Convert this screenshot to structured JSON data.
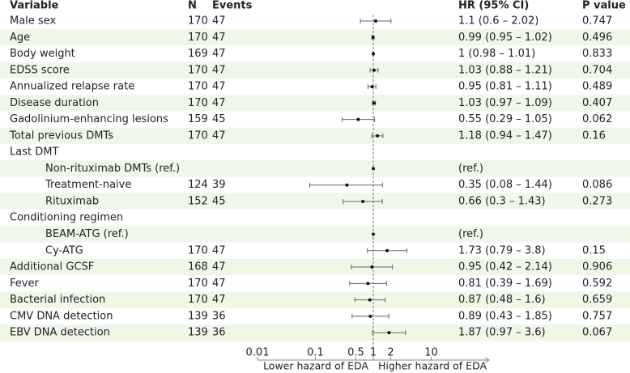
{
  "chart_data": {
    "type": "forest",
    "headers": {
      "variable": "Variable",
      "n": "N",
      "events": "Events",
      "hr": "HR (95% CI)",
      "p": "P value"
    },
    "x_scale": "log",
    "xlim": [
      0.01,
      100
    ],
    "xticks": [
      0.01,
      0.1,
      0.5,
      1,
      2,
      10
    ],
    "reference": 1,
    "x_label_left": "Lower hazard of EDA",
    "x_label_right": "Higher hazard of EDA",
    "point_color": "#111111",
    "ci_color": "#666666",
    "stripe_color": "#f0f7e9",
    "rows": [
      {
        "variable": "Male sex",
        "n": 170,
        "events": 47,
        "hr": 1.1,
        "lower": 0.6,
        "upper": 2.02,
        "hr_label": "1.1 (0.6 – 2.02)",
        "p": 0.747
      },
      {
        "variable": "Age",
        "n": 170,
        "events": 47,
        "hr": 0.99,
        "lower": 0.95,
        "upper": 1.02,
        "hr_label": "0.99 (0.95 – 1.02)",
        "p": 0.496
      },
      {
        "variable": "Body weight",
        "n": 169,
        "events": 47,
        "hr": 1,
        "lower": 0.98,
        "upper": 1.01,
        "hr_label": "1 (0.98 – 1.01)",
        "p": 0.833
      },
      {
        "variable": "EDSS score",
        "n": 170,
        "events": 47,
        "hr": 1.03,
        "lower": 0.88,
        "upper": 1.21,
        "hr_label": "1.03 (0.88 – 1.21)",
        "p": 0.704
      },
      {
        "variable": "Annualized relapse rate",
        "n": 170,
        "events": 47,
        "hr": 0.95,
        "lower": 0.81,
        "upper": 1.11,
        "hr_label": "0.95 (0.81 – 1.11)",
        "p": 0.489
      },
      {
        "variable": "Disease duration",
        "n": 170,
        "events": 47,
        "hr": 1.03,
        "lower": 0.97,
        "upper": 1.09,
        "hr_label": "1.03 (0.97 – 1.09)",
        "p": 0.407
      },
      {
        "variable": "Gadolinium-enhancing lesions",
        "n": 159,
        "events": 45,
        "hr": 0.55,
        "lower": 0.29,
        "upper": 1.05,
        "hr_label": "0.55 (0.29 – 1.05)",
        "p": 0.062
      },
      {
        "variable": "Total previous DMTs",
        "n": 170,
        "events": 47,
        "hr": 1.18,
        "lower": 0.94,
        "upper": 1.47,
        "hr_label": "1.18 (0.94 – 1.47)",
        "p": 0.16
      },
      {
        "variable": "Last DMT"
      },
      {
        "variable": "Non-rituximab DMTs (ref.)",
        "indent": true,
        "hr": 1,
        "hr_label": "(ref.)"
      },
      {
        "variable": "Treatment-naive",
        "indent": true,
        "n": 124,
        "events": 39,
        "hr": 0.35,
        "lower": 0.08,
        "upper": 1.44,
        "hr_label": "0.35 (0.08 – 1.44)",
        "p": 0.086
      },
      {
        "variable": "Rituximab",
        "indent": true,
        "n": 152,
        "events": 45,
        "hr": 0.66,
        "lower": 0.3,
        "upper": 1.43,
        "hr_label": "0.66 (0.3 – 1.43)",
        "p": 0.273
      },
      {
        "variable": "Conditioning regimen"
      },
      {
        "variable": "BEAM-ATG (ref.)",
        "indent": true,
        "hr": 1,
        "hr_label": "(ref.)"
      },
      {
        "variable": "Cy-ATG",
        "indent": true,
        "n": 170,
        "events": 47,
        "hr": 1.73,
        "lower": 0.79,
        "upper": 3.8,
        "hr_label": "1.73 (0.79 – 3.8)",
        "p": 0.15
      },
      {
        "variable": "Additional GCSF",
        "n": 168,
        "events": 47,
        "hr": 0.95,
        "lower": 0.42,
        "upper": 2.14,
        "hr_label": "0.95 (0.42 – 2.14)",
        "p": 0.906
      },
      {
        "variable": "Fever",
        "n": 170,
        "events": 47,
        "hr": 0.81,
        "lower": 0.39,
        "upper": 1.69,
        "hr_label": "0.81 (0.39 – 1.69)",
        "p": 0.592
      },
      {
        "variable": "Bacterial infection",
        "n": 170,
        "events": 47,
        "hr": 0.87,
        "lower": 0.48,
        "upper": 1.6,
        "hr_label": "0.87 (0.48 – 1.6)",
        "p": 0.659
      },
      {
        "variable": "CMV DNA detection",
        "n": 139,
        "events": 36,
        "hr": 0.89,
        "lower": 0.43,
        "upper": 1.85,
        "hr_label": "0.89 (0.43 – 1.85)",
        "p": 0.757
      },
      {
        "variable": "EBV DNA detection",
        "n": 139,
        "events": 36,
        "hr": 1.87,
        "lower": 0.97,
        "upper": 3.6,
        "hr_label": "1.87 (0.97 – 3.6)",
        "p": 0.067
      }
    ]
  }
}
